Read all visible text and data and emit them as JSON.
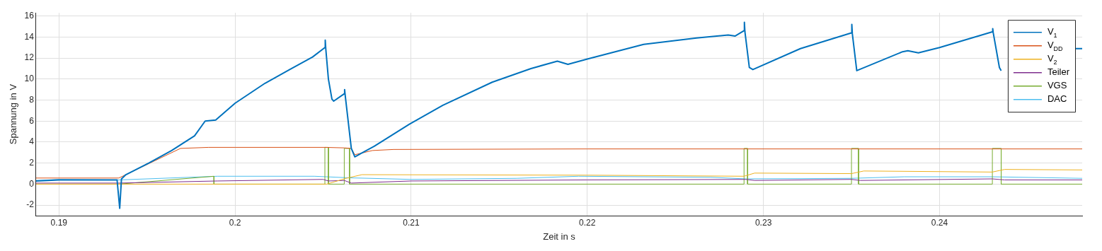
{
  "chart_data": {
    "type": "line",
    "xlabel": "Zeit in s",
    "ylabel": "Spannung in V",
    "xlim": [
      0.1887,
      0.2481
    ],
    "xticks": [
      0.19,
      0.2,
      0.21,
      0.22,
      0.23,
      0.24
    ],
    "ylim": [
      -3,
      16.3
    ],
    "yticks": [
      -2,
      0,
      2,
      4,
      6,
      8,
      10,
      12,
      14,
      16
    ],
    "grid": true,
    "legend": "top right",
    "line_style": "solid",
    "marker": "none",
    "series": [
      {
        "name": "V$_{1}$",
        "color": "#0072bd",
        "x": [
          0.1887,
          0.19,
          0.1933,
          0.19345,
          0.19355,
          0.1938,
          0.1951,
          0.1964,
          0.1977,
          0.1983,
          0.1989,
          0.2,
          0.2017,
          0.2031,
          0.2044,
          0.2051,
          0.20512,
          0.20515,
          0.2053,
          0.2055,
          0.2056,
          0.2062,
          0.20622,
          0.20625,
          0.2066,
          0.2068,
          0.2079,
          0.2099,
          0.2118,
          0.2146,
          0.2168,
          0.2183,
          0.2189,
          0.22,
          0.2232,
          0.2262,
          0.228,
          0.2284,
          0.2289,
          0.22892,
          0.22895,
          0.2292,
          0.2294,
          0.2321,
          0.235,
          0.23502,
          0.23505,
          0.2353,
          0.2379,
          0.2382,
          0.2388,
          0.24,
          0.243,
          0.24302,
          0.24305,
          0.2434,
          0.2435,
          0.2441,
          0.2445,
          0.2477,
          0.2481
        ],
        "values": [
          0.3,
          0.4,
          0.4,
          -2.3,
          0.5,
          0.9,
          2.0,
          3.2,
          4.6,
          6.0,
          6.1,
          7.7,
          9.6,
          10.9,
          12.1,
          13.0,
          13.7,
          12.9,
          10.0,
          8.1,
          7.9,
          8.6,
          9.0,
          8.5,
          3.4,
          2.6,
          3.6,
          5.7,
          7.5,
          9.7,
          11.0,
          11.7,
          11.4,
          11.9,
          13.3,
          13.9,
          14.2,
          14.1,
          14.6,
          15.4,
          14.5,
          11.1,
          10.9,
          12.9,
          14.4,
          15.2,
          14.3,
          10.8,
          12.6,
          12.7,
          12.5,
          13.0,
          14.5,
          14.8,
          14.4,
          11.1,
          10.8,
          null,
          null,
          12.9,
          12.9
        ]
      },
      {
        "name": "V$_{DD}$",
        "color": "#d95319",
        "x": [
          0.1887,
          0.1934,
          0.1969,
          0.1985,
          0.2,
          0.2051,
          0.2062,
          0.2066,
          0.2068,
          0.2078,
          0.209,
          0.22,
          0.2481
        ],
        "values": [
          0.58,
          0.58,
          3.4,
          3.5,
          3.5,
          3.5,
          3.45,
          3.4,
          2.8,
          3.2,
          3.3,
          3.35,
          3.35
        ]
      },
      {
        "name": "V$_{2}$",
        "color": "#edb120",
        "x": [
          0.1887,
          0.2052,
          0.2063,
          0.2072,
          0.22,
          0.2289,
          0.2295,
          0.235,
          0.2357,
          0.243,
          0.2437,
          0.2481
        ],
        "values": [
          0.0,
          0.0,
          0.55,
          0.9,
          0.85,
          0.75,
          1.05,
          1.0,
          1.25,
          1.15,
          1.4,
          1.35
        ]
      },
      {
        "name": "Teiler",
        "color": "#7e2f8e",
        "x": [
          0.1887,
          0.1934,
          0.199,
          0.205,
          0.2053,
          0.2062,
          0.2066,
          0.21,
          0.22,
          0.229,
          0.2295,
          0.235,
          0.2355,
          0.243,
          0.2437,
          0.2481
        ],
        "values": [
          0.1,
          0.1,
          0.3,
          0.45,
          0.3,
          0.35,
          0.1,
          0.3,
          0.4,
          0.45,
          0.35,
          0.45,
          0.35,
          0.5,
          0.4,
          0.4
        ]
      },
      {
        "name": "VGS",
        "color": "#77ac30",
        "x": [
          0.1887,
          0.1934,
          0.1988,
          0.1988,
          0.2051,
          0.2051,
          0.2053,
          0.2053,
          0.2062,
          0.2062,
          0.2065,
          0.2065,
          0.2289,
          0.2289,
          0.2291,
          0.2291,
          0.235,
          0.235,
          0.2354,
          0.2354,
          0.243,
          0.243,
          0.2435,
          0.2435,
          0.2481
        ],
        "values": [
          0,
          0,
          0.75,
          0,
          0,
          3.5,
          3.5,
          0,
          0,
          3.4,
          3.4,
          0,
          0,
          3.4,
          3.4,
          0,
          0,
          3.4,
          3.4,
          0,
          0,
          3.4,
          3.4,
          0,
          0
        ]
      },
      {
        "name": "DAC",
        "color": "#4dbeee",
        "x": [
          0.1887,
          0.19,
          0.1934,
          0.199,
          0.2045,
          0.2065,
          0.21,
          0.216,
          0.2195,
          0.227,
          0.229,
          0.235,
          0.238,
          0.243,
          0.2481
        ],
        "values": [
          0.35,
          0.45,
          0.4,
          0.75,
          0.75,
          0.6,
          0.45,
          0.55,
          0.75,
          0.65,
          0.5,
          0.55,
          0.7,
          0.7,
          0.55
        ]
      }
    ]
  }
}
